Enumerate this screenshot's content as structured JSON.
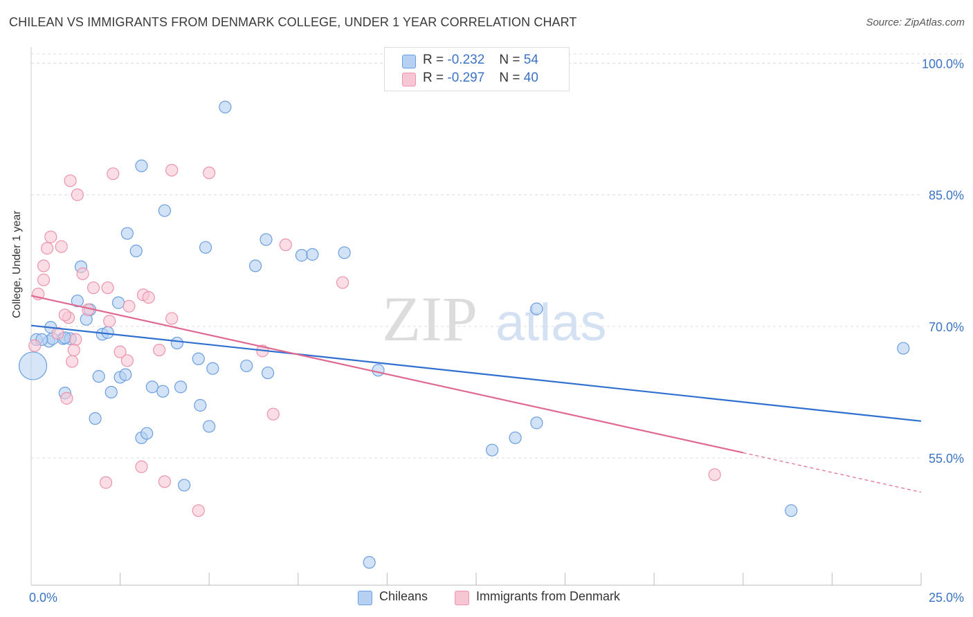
{
  "title": "CHILEAN VS IMMIGRANTS FROM DENMARK COLLEGE, UNDER 1 YEAR CORRELATION CHART",
  "source": "Source: ZipAtlas.com",
  "watermark": {
    "zip": "ZIP",
    "atlas": "atlas"
  },
  "colors": {
    "blue_fill": "#b6d0f2",
    "blue_stroke": "#6a9ee0",
    "blue_line": "#2f6fcf",
    "pink_fill": "#f7c6d4",
    "pink_stroke": "#ec93ae",
    "pink_line": "#e06890",
    "tick_label": "#3b73c4",
    "grid": "#dcdcdc"
  },
  "legend": {
    "rows": [
      {
        "r_label": "R =",
        "r_value": "-0.232",
        "n_label": "N =",
        "n_value": "54"
      },
      {
        "r_label": "R =",
        "r_value": "-0.297",
        "n_label": "N =",
        "n_value": "40"
      }
    ]
  },
  "bottom_legend": {
    "chileans": "Chileans",
    "denmark": "Immigrants from Denmark"
  },
  "chart_data": {
    "type": "scatter",
    "title": "CHILEAN VS IMMIGRANTS FROM DENMARK COLLEGE, UNDER 1 YEAR CORRELATION CHART",
    "xlabel": "",
    "ylabel": "College, Under 1 year",
    "xlim": [
      0,
      25
    ],
    "ylim": [
      40.5,
      102
    ],
    "x_tick_labels": [
      {
        "value": 0,
        "label": "0.0%"
      },
      {
        "value": 25,
        "label": "25.0%"
      }
    ],
    "y_ticks": [
      {
        "value": 100,
        "label": "100.0%"
      },
      {
        "value": 85,
        "label": "85.0%"
      },
      {
        "value": 70,
        "label": "70.0%"
      },
      {
        "value": 55,
        "label": "55.0%"
      }
    ],
    "x_minor_ticks": [
      2.5,
      5,
      7.5,
      10,
      12.5,
      15,
      17.5,
      20,
      22.5,
      25
    ],
    "series": [
      {
        "name": "Chileans",
        "r": -0.232,
        "n": 54,
        "trend": {
          "x0": 0,
          "y0": 70.1,
          "x1": 25,
          "y1": 59.2
        },
        "points": [
          [
            0.15,
            68.5
          ],
          [
            0.5,
            68.3
          ],
          [
            0.6,
            68.6
          ],
          [
            0.9,
            68.6
          ],
          [
            1.1,
            68.6
          ],
          [
            0.55,
            69.9
          ],
          [
            0.95,
            68.7
          ],
          [
            1.4,
            76.8
          ],
          [
            1.3,
            72.9
          ],
          [
            1.55,
            70.8
          ],
          [
            1.65,
            71.9
          ],
          [
            2.0,
            69.1
          ],
          [
            2.15,
            69.3
          ],
          [
            2.45,
            72.7
          ],
          [
            2.7,
            80.6
          ],
          [
            2.95,
            78.6
          ],
          [
            3.1,
            88.3
          ],
          [
            3.75,
            83.2
          ],
          [
            1.9,
            64.3
          ],
          [
            2.25,
            62.5
          ],
          [
            2.5,
            64.2
          ],
          [
            2.65,
            64.5
          ],
          [
            3.4,
            63.1
          ],
          [
            3.7,
            62.6
          ],
          [
            4.1,
            68.1
          ],
          [
            4.2,
            63.1
          ],
          [
            4.7,
            66.3
          ],
          [
            4.9,
            79.0
          ],
          [
            5.1,
            65.2
          ],
          [
            4.75,
            61.0
          ],
          [
            5.0,
            58.6
          ],
          [
            3.1,
            57.3
          ],
          [
            3.25,
            57.8
          ],
          [
            1.8,
            59.5
          ],
          [
            0.95,
            62.4
          ],
          [
            4.3,
            51.9
          ],
          [
            5.45,
            95.0
          ],
          [
            6.05,
            65.5
          ],
          [
            6.3,
            76.9
          ],
          [
            6.6,
            79.9
          ],
          [
            6.65,
            64.7
          ],
          [
            7.6,
            78.1
          ],
          [
            7.9,
            78.2
          ],
          [
            8.8,
            78.4
          ],
          [
            9.75,
            65.0
          ],
          [
            9.5,
            43.1
          ],
          [
            12.95,
            55.9
          ],
          [
            13.6,
            57.3
          ],
          [
            14.2,
            72.0
          ],
          [
            14.2,
            59.0
          ],
          [
            21.35,
            49.0
          ],
          [
            24.5,
            67.5
          ],
          [
            0.05,
            65.5
          ],
          [
            0.3,
            68.5
          ]
        ]
      },
      {
        "name": "Immigrants from Denmark",
        "r": -0.297,
        "n": 40,
        "trend": {
          "x0": 0,
          "y0": 73.5,
          "x1": 20.0,
          "y1": 55.6
        },
        "trend_dashed": {
          "x0": 20.0,
          "y0": 55.6,
          "x1": 25,
          "y1": 51.1
        },
        "points": [
          [
            0.1,
            67.8
          ],
          [
            0.2,
            73.7
          ],
          [
            0.35,
            75.3
          ],
          [
            0.35,
            76.9
          ],
          [
            0.45,
            78.9
          ],
          [
            0.55,
            80.2
          ],
          [
            0.85,
            79.1
          ],
          [
            1.05,
            71.0
          ],
          [
            0.75,
            69.2
          ],
          [
            0.95,
            71.3
          ],
          [
            1.25,
            68.5
          ],
          [
            1.45,
            76.0
          ],
          [
            1.6,
            71.9
          ],
          [
            1.2,
            67.3
          ],
          [
            1.15,
            66.0
          ],
          [
            1.0,
            61.8
          ],
          [
            1.1,
            86.6
          ],
          [
            1.3,
            85.0
          ],
          [
            1.75,
            74.4
          ],
          [
            2.15,
            74.4
          ],
          [
            2.2,
            70.6
          ],
          [
            2.5,
            67.1
          ],
          [
            2.7,
            66.1
          ],
          [
            2.75,
            72.3
          ],
          [
            3.15,
            73.6
          ],
          [
            3.3,
            73.3
          ],
          [
            3.6,
            67.3
          ],
          [
            3.95,
            70.9
          ],
          [
            2.3,
            87.4
          ],
          [
            3.95,
            87.8
          ],
          [
            5.0,
            87.5
          ],
          [
            3.1,
            54.0
          ],
          [
            3.75,
            52.3
          ],
          [
            2.1,
            52.2
          ],
          [
            4.7,
            49.0
          ],
          [
            7.15,
            79.3
          ],
          [
            6.5,
            67.2
          ],
          [
            6.8,
            60.0
          ],
          [
            8.75,
            75.0
          ],
          [
            19.2,
            53.1
          ]
        ]
      }
    ]
  }
}
